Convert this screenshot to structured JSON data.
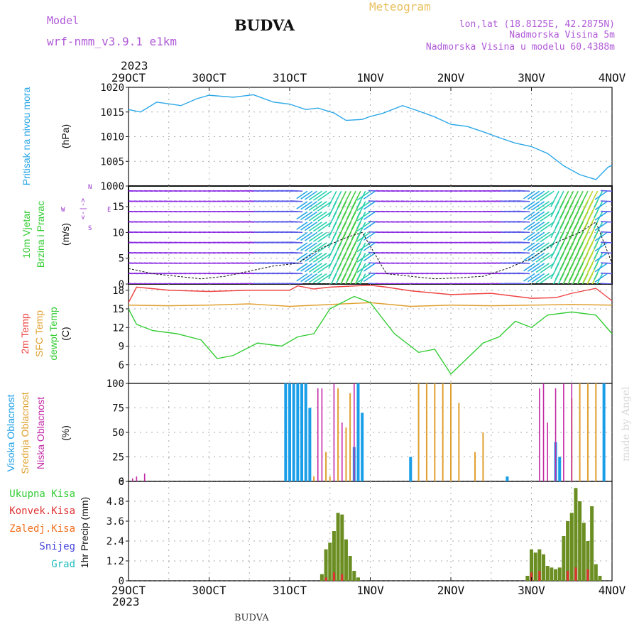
{
  "header": {
    "model_label": "Model",
    "model_name": "wrf-nmm_v3.9.1 e1km",
    "station": "BUDVA",
    "product": "Meteogram",
    "lonlat": "lon,lat (18.8125E, 42.2875N)",
    "elevation": "Nadmorska Visina 5m",
    "model_elevation": "Nadmorska Visina u modelu 60.4388m",
    "year": "2023",
    "footer_station": "BUDVA",
    "watermark": "made by Angel"
  },
  "colors": {
    "pressure": "#2aa7e8",
    "temp2m": "#ee4444",
    "sfc_temp": "#e0a030",
    "dewpt": "#33cc33",
    "high_cloud": "#1a9ee8",
    "mid_cloud": "#e0a030",
    "low_cloud": "#c42aa8",
    "precip_total": "#33cc33",
    "precip_conv": "#e03030",
    "precip_frz": "#f07020",
    "snow": "#4444dd",
    "grad": "#22bbbb",
    "purple_text": "#9933cc"
  },
  "x_axis": {
    "tick_labels": [
      "29OCT",
      "30OCT",
      "31OCT",
      "1NOV",
      "2NOV",
      "3NOV",
      "4NOV"
    ],
    "day_range": [
      0,
      6
    ]
  },
  "panels": {
    "pressure": {
      "label": "Pritisak na nivou mora",
      "unit": "(hPa)"
    },
    "wind": {
      "label1": "10m Vjetar",
      "label2": "Brzina i Pravac",
      "unit": "(m/s)",
      "compass": {
        "n": "N",
        "s": "S",
        "e": "E",
        "w": "W",
        "arrow": "<-|->"
      }
    },
    "temp": {
      "label_temp": "2m Temp",
      "label_sfc": "SFC Temp",
      "label_dew": "dewpt Temp",
      "unit": "(C)"
    },
    "cloud": {
      "label_high": "Visoka Oblacnost",
      "label_mid": "Srednja Oblacnost",
      "label_low": "Niska Oblacnost",
      "unit": "(%)"
    },
    "precip": {
      "label_total": "Ukupna Kisa",
      "label_conv": "Konvek.Kisa",
      "label_frz": "Zaledj.Kisa",
      "label_snow": "Snijeg",
      "label_grad": "Grad",
      "unit": "1hr Precip (mm)"
    }
  },
  "chart_data": [
    {
      "type": "line",
      "title": "Pritisak na nivou mora",
      "ylabel": "(hPa)",
      "ylim": [
        1000,
        1020
      ],
      "yticks": [
        1000,
        1005,
        1010,
        1015,
        1020
      ],
      "grid": true,
      "series": [
        {
          "name": "",
          "x_day": [
            0,
            0.15,
            0.35,
            0.65,
            0.85,
            1.0,
            1.3,
            1.55,
            1.8,
            2.0,
            2.2,
            2.35,
            2.55,
            2.7,
            2.9,
            3.0,
            3.15,
            3.4,
            3.6,
            3.8,
            4.0,
            4.2,
            4.4,
            4.6,
            4.8,
            5.0,
            5.2,
            5.4,
            5.6,
            5.8,
            5.95,
            6.0
          ],
          "values": [
            1015.5,
            1015,
            1017,
            1016.3,
            1017.7,
            1018.4,
            1018,
            1018.5,
            1017,
            1016.6,
            1015.5,
            1015.8,
            1014.8,
            1013.3,
            1013.5,
            1014.1,
            1014.7,
            1016.3,
            1015.2,
            1014,
            1012.5,
            1012.1,
            1011,
            1009.8,
            1008.7,
            1008,
            1006.6,
            1004.1,
            1002.3,
            1001.3,
            1003.8,
            1004.2
          ]
        }
      ]
    },
    {
      "type": "barbs",
      "title": "10m Vjetar Brzina i Pravac",
      "ylabel": "(m/s)",
      "ylim": [
        0,
        19
      ],
      "yticks": [
        0,
        5,
        10,
        15
      ],
      "grid": true,
      "series": [
        {
          "name": "",
          "x_day": [
            0,
            0.3,
            0.6,
            0.9,
            1.2,
            1.5,
            1.8,
            2.1,
            2.4,
            2.7,
            2.9,
            3.2,
            3.5,
            3.8,
            4.1,
            4.4,
            4.7,
            5.0,
            5.3,
            5.6,
            5.8,
            6.0
          ],
          "values": [
            3,
            2,
            1.5,
            1,
            1.5,
            2.5,
            3.5,
            4,
            7,
            9,
            10,
            2,
            1.5,
            1,
            1.2,
            1.5,
            3,
            5,
            8,
            10,
            12,
            4
          ]
        }
      ]
    },
    {
      "type": "line",
      "title": "2m Temp / SFC Temp / dewpt Temp",
      "ylabel": "(C)",
      "ylim": [
        3,
        19
      ],
      "yticks": [
        6,
        9,
        12,
        15,
        18
      ],
      "grid": true,
      "series": [
        {
          "name": "2m Temp",
          "x_day": [
            0,
            0.1,
            0.5,
            1,
            1.5,
            2,
            2.1,
            2.3,
            2.5,
            3,
            3.2,
            3.5,
            4,
            4.5,
            5,
            5.3,
            5.5,
            5.8,
            6
          ],
          "values": [
            16,
            18.5,
            18,
            17.8,
            18,
            18,
            18.7,
            18.2,
            18.5,
            18.8,
            18.5,
            17.9,
            17.3,
            17.5,
            16.7,
            16.8,
            17.5,
            18.3,
            16.3
          ]
        },
        {
          "name": "SFC Temp",
          "x_day": [
            0,
            0.5,
            1,
            1.5,
            2,
            2.5,
            3,
            3.5,
            4,
            4.5,
            5,
            5.5,
            6
          ],
          "values": [
            15.6,
            15.5,
            15.6,
            15.8,
            15.4,
            15.7,
            16,
            15.4,
            15.6,
            15.5,
            15.6,
            15.7,
            15.6
          ]
        },
        {
          "name": "dewpt Temp",
          "x_day": [
            0,
            0.1,
            0.3,
            0.6,
            0.9,
            1.1,
            1.3,
            1.6,
            1.9,
            2.1,
            2.3,
            2.5,
            2.8,
            3.0,
            3.3,
            3.6,
            3.8,
            4.0,
            4.2,
            4.4,
            4.6,
            4.8,
            5.0,
            5.2,
            5.5,
            5.8,
            6.0
          ],
          "values": [
            15,
            12.5,
            11.5,
            11,
            10,
            7,
            7.5,
            9.5,
            9,
            10.5,
            11,
            15,
            17,
            16,
            11,
            8,
            8.5,
            4.5,
            7,
            9.5,
            10.5,
            13,
            12,
            14,
            14.5,
            14,
            11
          ]
        }
      ]
    },
    {
      "type": "bar",
      "title": "Visoka / Srednja / Niska Oblacnost",
      "ylabel": "(%)",
      "ylim": [
        0,
        100
      ],
      "yticks": [
        0,
        25,
        50,
        75,
        100
      ],
      "grid": true,
      "series": [
        {
          "name": "Visoka Oblacnost",
          "x_day": [
            1.95,
            2.0,
            2.05,
            2.1,
            2.15,
            2.2,
            2.25,
            2.8,
            2.85,
            2.9,
            3.5,
            4.7,
            5.3,
            5.35,
            5.9
          ],
          "values": [
            100,
            100,
            100,
            100,
            100,
            100,
            75,
            35,
            100,
            70,
            25,
            5,
            40,
            25,
            100
          ]
        },
        {
          "name": "Srednja Oblacnost",
          "x_day": [
            2.3,
            2.45,
            2.5,
            2.6,
            2.7,
            2.75,
            3.6,
            3.7,
            3.8,
            3.9,
            4.0,
            4.1,
            4.3,
            4.4,
            5.5,
            5.6,
            5.7,
            5.8
          ],
          "values": [
            5,
            30,
            5,
            95,
            55,
            90,
            100,
            100,
            100,
            100,
            100,
            80,
            30,
            50,
            85,
            100,
            100,
            100
          ]
        },
        {
          "name": "Niska Oblacnost",
          "x_day": [
            0.05,
            0.1,
            0.2,
            2.35,
            2.4,
            2.55,
            2.65,
            2.8,
            5.1,
            5.15,
            5.2,
            5.3,
            5.4,
            5.5
          ],
          "values": [
            3,
            5,
            8,
            95,
            95,
            100,
            60,
            100,
            95,
            100,
            60,
            95,
            100,
            100
          ]
        }
      ]
    },
    {
      "type": "bar",
      "title": "1hr Precip",
      "ylabel": "1hr Precip (mm)",
      "ylim": [
        0,
        6
      ],
      "yticks": [
        0,
        1.2,
        2.4,
        3.6,
        4.8,
        6
      ],
      "grid": true,
      "series": [
        {
          "name": "Ukupna Kisa",
          "x_day": [
            2.4,
            2.45,
            2.5,
            2.55,
            2.6,
            2.65,
            2.7,
            2.75,
            2.8,
            2.85,
            4.95,
            5.0,
            5.05,
            5.1,
            5.15,
            5.2,
            5.25,
            5.3,
            5.35,
            5.4,
            5.45,
            5.5,
            5.55,
            5.6,
            5.65,
            5.7,
            5.75,
            5.8,
            5.85
          ],
          "values": [
            0.4,
            1.9,
            2.3,
            3.0,
            4.1,
            4.0,
            2.5,
            1.5,
            0.6,
            0.2,
            0.3,
            1.9,
            1.7,
            1.9,
            1.6,
            0.9,
            0.8,
            0.7,
            0.8,
            2.7,
            3.6,
            4.1,
            5.6,
            4.8,
            3.5,
            2.4,
            4.5,
            1.0,
            0.3
          ]
        },
        {
          "name": "Konvek.Kisa",
          "x_day": [
            2.45,
            2.55,
            2.65,
            5.0,
            5.1,
            5.45,
            5.55,
            5.7
          ],
          "values": [
            0.2,
            0.5,
            0.4,
            0.5,
            0.6,
            0.6,
            0.8,
            0.7
          ]
        }
      ]
    }
  ]
}
